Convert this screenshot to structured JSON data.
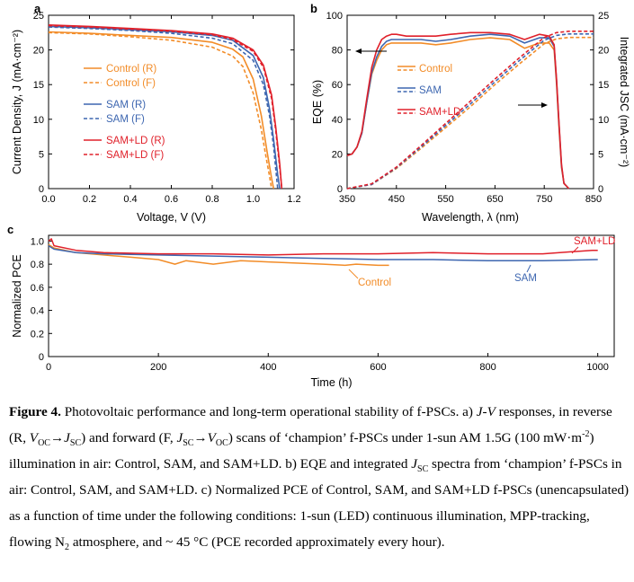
{
  "chart_data": [
    {
      "panel": "a",
      "type": "line",
      "xlabel": "Voltage, V (V)",
      "ylabel": "Current Density, J (mA·cm⁻²)",
      "xlim": [
        0.0,
        1.2
      ],
      "ylim": [
        0,
        25
      ],
      "xticks": [
        "0.0",
        "0.2",
        "0.4",
        "0.6",
        "0.8",
        "1.0",
        "1.2"
      ],
      "yticks": [
        "0",
        "5",
        "10",
        "15",
        "20",
        "25"
      ],
      "grid": false,
      "legend_position": "center-left",
      "series": [
        {
          "name": "Control (R)",
          "color": "#f28c28",
          "dash": "solid",
          "x": [
            0.0,
            0.2,
            0.4,
            0.6,
            0.8,
            0.9,
            0.95,
            1.0,
            1.04,
            1.07,
            1.09,
            1.1
          ],
          "y": [
            22.6,
            22.4,
            22.1,
            21.8,
            21.1,
            20.1,
            19.0,
            15.8,
            10.5,
            5.0,
            1.5,
            0
          ]
        },
        {
          "name": "Control (F)",
          "color": "#f28c28",
          "dash": "dashed",
          "x": [
            0.0,
            0.2,
            0.4,
            0.6,
            0.8,
            0.9,
            0.95,
            1.0,
            1.04,
            1.06,
            1.08,
            1.09
          ],
          "y": [
            22.5,
            22.3,
            21.9,
            21.4,
            20.4,
            19.1,
            17.6,
            13.8,
            8.5,
            5.0,
            1.8,
            0
          ]
        },
        {
          "name": "SAM (R)",
          "color": "#3d66b0",
          "dash": "solid",
          "x": [
            0.0,
            0.2,
            0.4,
            0.6,
            0.8,
            0.9,
            1.0,
            1.05,
            1.08,
            1.1,
            1.12,
            1.13
          ],
          "y": [
            23.4,
            23.2,
            22.9,
            22.6,
            22.1,
            21.4,
            19.2,
            16.0,
            11.5,
            7.0,
            2.0,
            0
          ]
        },
        {
          "name": "SAM (F)",
          "color": "#3d66b0",
          "dash": "dashed",
          "x": [
            0.0,
            0.2,
            0.4,
            0.6,
            0.8,
            0.9,
            1.0,
            1.05,
            1.08,
            1.1,
            1.11,
            1.12
          ],
          "y": [
            23.3,
            23.1,
            22.8,
            22.4,
            21.7,
            20.9,
            18.5,
            15.0,
            10.5,
            6.0,
            3.0,
            0
          ]
        },
        {
          "name": "SAM+LD (R)",
          "color": "#e0202a",
          "dash": "solid",
          "x": [
            0.0,
            0.2,
            0.4,
            0.6,
            0.8,
            0.9,
            1.0,
            1.05,
            1.09,
            1.11,
            1.13,
            1.14
          ],
          "y": [
            23.6,
            23.4,
            23.1,
            22.8,
            22.3,
            21.7,
            20.0,
            17.8,
            13.5,
            9.0,
            3.5,
            0
          ]
        },
        {
          "name": "SAM+LD (F)",
          "color": "#e0202a",
          "dash": "dashed",
          "x": [
            0.0,
            0.2,
            0.4,
            0.6,
            0.8,
            0.9,
            1.0,
            1.05,
            1.09,
            1.11,
            1.13,
            1.14
          ],
          "y": [
            23.5,
            23.3,
            23.0,
            22.7,
            22.2,
            21.5,
            19.8,
            17.5,
            13.0,
            8.5,
            3.0,
            0
          ]
        }
      ]
    },
    {
      "panel": "b",
      "type": "line",
      "xlabel": "Wavelength, λ (nm)",
      "ylabel": "EQE (%)",
      "y2label": "Integrated JSC (mA·cm⁻²)",
      "xlim": [
        350,
        850
      ],
      "ylim": [
        0,
        100
      ],
      "y2lim": [
        0,
        25
      ],
      "xticks": [
        "350",
        "450",
        "550",
        "650",
        "750",
        "850"
      ],
      "yticks": [
        "0",
        "20",
        "40",
        "60",
        "80",
        "100"
      ],
      "y2ticks": [
        "0",
        "5",
        "10",
        "15",
        "20",
        "25"
      ],
      "grid": false,
      "legend_position": "center",
      "legend": [
        {
          "name": "Control",
          "color": "#f28c28"
        },
        {
          "name": "SAM",
          "color": "#3d66b0"
        },
        {
          "name": "SAM+LD",
          "color": "#e0202a"
        }
      ],
      "series": [
        {
          "name": "Control",
          "axis": "left",
          "color": "#f28c28",
          "dash": "solid",
          "x": [
            350,
            360,
            370,
            380,
            390,
            400,
            410,
            420,
            430,
            440,
            450,
            470,
            500,
            530,
            560,
            600,
            640,
            680,
            710,
            740,
            760,
            770,
            775,
            780,
            785,
            790,
            800
          ],
          "y": [
            19,
            20,
            24,
            32,
            50,
            66,
            74,
            80,
            83,
            84,
            84,
            84,
            84,
            83,
            84,
            86,
            87,
            86,
            81,
            84,
            84,
            80,
            60,
            35,
            12,
            3,
            0
          ]
        },
        {
          "name": "SAM",
          "axis": "left",
          "color": "#3d66b0",
          "dash": "solid",
          "x": [
            350,
            360,
            370,
            380,
            390,
            400,
            410,
            420,
            430,
            440,
            450,
            470,
            500,
            530,
            560,
            600,
            640,
            680,
            710,
            740,
            760,
            770,
            775,
            780,
            785,
            790,
            800
          ],
          "y": [
            19,
            20,
            24,
            32,
            50,
            67,
            76,
            82,
            85,
            86,
            86,
            86,
            86,
            85,
            86,
            88,
            89,
            88,
            84,
            87,
            87,
            82,
            62,
            37,
            13,
            3,
            0
          ]
        },
        {
          "name": "SAM+LD",
          "axis": "left",
          "color": "#e0202a",
          "dash": "solid",
          "x": [
            350,
            360,
            370,
            380,
            390,
            400,
            410,
            420,
            430,
            440,
            450,
            470,
            500,
            530,
            560,
            600,
            640,
            680,
            710,
            740,
            760,
            770,
            775,
            780,
            785,
            790,
            800
          ],
          "y": [
            19,
            20,
            24,
            33,
            52,
            70,
            80,
            86,
            88,
            89,
            89,
            88,
            88,
            88,
            89,
            90,
            90,
            89,
            86,
            89,
            88,
            83,
            63,
            38,
            14,
            3,
            0
          ]
        },
        {
          "name": "Control",
          "axis": "right",
          "color": "#f28c28",
          "dash": "dashed",
          "x": [
            350,
            400,
            450,
            500,
            550,
            600,
            650,
            700,
            750,
            775,
            800,
            850
          ],
          "y": [
            0,
            0.6,
            2.9,
            5.8,
            8.8,
            11.8,
            15.0,
            18.0,
            20.9,
            21.6,
            21.8,
            21.8
          ]
        },
        {
          "name": "SAM",
          "axis": "right",
          "color": "#3d66b0",
          "dash": "dashed",
          "x": [
            350,
            400,
            450,
            500,
            550,
            600,
            650,
            700,
            750,
            775,
            800,
            850
          ],
          "y": [
            0,
            0.6,
            3.0,
            6.0,
            9.1,
            12.2,
            15.4,
            18.5,
            21.4,
            22.1,
            22.3,
            22.3
          ]
        },
        {
          "name": "SAM+LD",
          "axis": "right",
          "color": "#e0202a",
          "dash": "dashed",
          "x": [
            350,
            400,
            450,
            500,
            550,
            600,
            650,
            700,
            750,
            775,
            800,
            850
          ],
          "y": [
            0,
            0.7,
            3.1,
            6.2,
            9.4,
            12.6,
            15.8,
            18.9,
            21.8,
            22.5,
            22.7,
            22.7
          ]
        }
      ],
      "annotations": [
        "left-arrow at EQE curve",
        "right-arrow at integrated JSC curve"
      ]
    },
    {
      "panel": "c",
      "type": "line",
      "xlabel": "Time (h)",
      "ylabel": "Normalized PCE",
      "xlim": [
        0,
        1030
      ],
      "ylim": [
        0,
        1.05
      ],
      "xticks": [
        "0",
        "200",
        "400",
        "600",
        "800",
        "1000"
      ],
      "yticks": [
        "0",
        "0.2",
        "0.4",
        "0.6",
        "0.8",
        "1.0"
      ],
      "grid": false,
      "series": [
        {
          "name": "Control",
          "color": "#f28c28",
          "x": [
            0,
            10,
            50,
            100,
            150,
            200,
            230,
            250,
            300,
            350,
            400,
            450,
            500,
            540,
            560,
            600,
            620
          ],
          "y": [
            0.97,
            0.94,
            0.9,
            0.88,
            0.86,
            0.84,
            0.8,
            0.83,
            0.8,
            0.83,
            0.82,
            0.81,
            0.8,
            0.79,
            0.8,
            0.79,
            0.79
          ]
        },
        {
          "name": "SAM",
          "color": "#3d66b0",
          "x": [
            0,
            10,
            50,
            100,
            200,
            300,
            400,
            500,
            600,
            700,
            800,
            900,
            1000
          ],
          "y": [
            0.96,
            0.93,
            0.9,
            0.89,
            0.88,
            0.87,
            0.86,
            0.85,
            0.84,
            0.84,
            0.83,
            0.83,
            0.84
          ]
        },
        {
          "name": "SAM+LD",
          "color": "#e0202a",
          "x": [
            0,
            5,
            10,
            50,
            100,
            200,
            300,
            400,
            500,
            600,
            700,
            800,
            900,
            990,
            1000
          ],
          "y": [
            1.0,
            1.02,
            0.96,
            0.92,
            0.9,
            0.89,
            0.89,
            0.88,
            0.89,
            0.89,
            0.9,
            0.89,
            0.89,
            0.92,
            0.92
          ]
        }
      ],
      "labels": [
        "SAM+LD",
        "SAM",
        "Control"
      ]
    }
  ],
  "panel_labels": [
    "a",
    "b",
    "c"
  ],
  "caption": {
    "fig": "Figure 4.",
    "p1": " Photovoltaic performance and long-term operational stability of f-PSCs. a) ",
    "jv": "J-V",
    "p2": " responses, in reverse (R, ",
    "voc1": "V",
    "voc1_sub": "OC",
    "arrow1": "→",
    "jsc1": "J",
    "jsc1_sub": "SC",
    "p3": ") and forward (F, ",
    "jsc2": "J",
    "jsc2_sub": "SC",
    "arrow2": "→",
    "voc2": "V",
    "voc2_sub": "OC",
    "p4": ") scans of ‘champion’ f-PSCs under 1-sun AM 1.5G (100 mW·m",
    "sup1": "-2",
    "p5": ") illumination in air: Control, SAM, and SAM+LD. b) EQE and integrated ",
    "jsc3": "J",
    "jsc3_sub": "SC",
    "p6": " spectra from ‘champion’ f-PSCs in air: Control, SAM, and SAM+LD. c) Normalized PCE of Control, SAM, and SAM+LD f-PSCs (unencapsulated) as a function of time under the following conditions: 1-sun (LED) continuous illumination, MPP-tracking, flowing N",
    "n2_sub": "2",
    "p7": " atmosphere, and ~ 45 °C (PCE recorded approximately every hour)."
  }
}
